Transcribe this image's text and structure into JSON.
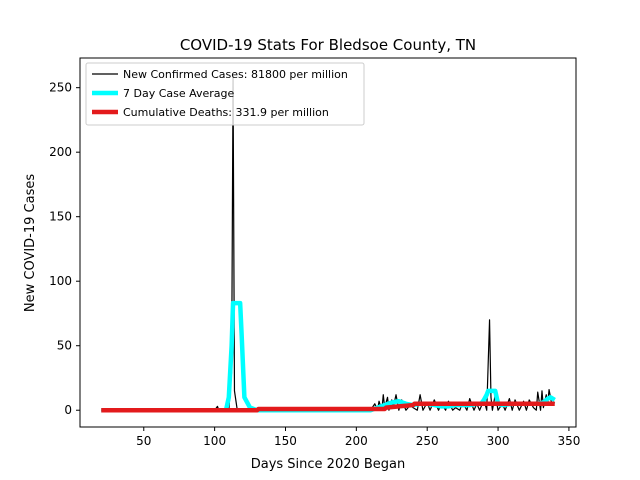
{
  "chart_data": {
    "type": "line",
    "title": "COVID-19 Stats For Bledsoe County, TN",
    "xlabel": "Days Since 2020 Began",
    "ylabel": "New COVID-19 Cases",
    "xlim": [
      5,
      355
    ],
    "ylim": [
      -13,
      273
    ],
    "xticks": [
      50,
      100,
      150,
      200,
      250,
      300,
      350
    ],
    "yticks": [
      0,
      50,
      100,
      150,
      200,
      250
    ],
    "grid": false,
    "legend_placement": "top-left",
    "series": [
      {
        "name": "New Confirmed Cases: 81800 per million",
        "color": "#000000",
        "style": "thin",
        "x": [
          20,
          100,
          102,
          103,
          110,
          112,
          113,
          114,
          116,
          120,
          130,
          140,
          150,
          160,
          170,
          180,
          190,
          200,
          205,
          210,
          213,
          215,
          216,
          218,
          219,
          220,
          222,
          223,
          225,
          226,
          228,
          230,
          232,
          235,
          238,
          240,
          243,
          245,
          247,
          250,
          252,
          255,
          258,
          260,
          263,
          265,
          268,
          270,
          273,
          275,
          278,
          280,
          283,
          285,
          287,
          290,
          292,
          294,
          295,
          296,
          298,
          300,
          303,
          305,
          308,
          310,
          312,
          315,
          318,
          320,
          322,
          325,
          327,
          328,
          330,
          331,
          332,
          334,
          335,
          336,
          338,
          340
        ],
        "y": [
          0,
          0,
          3,
          0,
          0,
          30,
          259,
          15,
          0,
          0,
          0,
          0,
          0,
          0,
          0,
          0,
          0,
          0,
          2,
          0,
          5,
          0,
          7,
          0,
          12,
          2,
          10,
          0,
          8,
          2,
          12,
          0,
          8,
          0,
          4,
          2,
          0,
          12,
          0,
          6,
          0,
          8,
          0,
          5,
          0,
          7,
          0,
          2,
          0,
          6,
          0,
          9,
          0,
          5,
          0,
          8,
          0,
          70,
          10,
          0,
          12,
          0,
          5,
          0,
          9,
          0,
          8,
          0,
          7,
          0,
          8,
          2,
          0,
          14,
          0,
          15,
          2,
          12,
          5,
          16,
          4,
          6
        ]
      },
      {
        "name": "7 Day Case Average",
        "color": "#00ffff",
        "style": "thick",
        "x": [
          20,
          108,
          110,
          112,
          113,
          118,
          119,
          121,
          125,
          130,
          170,
          210,
          215,
          220,
          225,
          230,
          235,
          240,
          245,
          250,
          255,
          260,
          265,
          270,
          275,
          280,
          285,
          288,
          290,
          292,
          293,
          298,
          300,
          303,
          310,
          320,
          328,
          332,
          335,
          337,
          340
        ],
        "y": [
          0,
          0,
          10,
          50,
          83,
          83,
          60,
          10,
          2,
          0,
          0,
          0,
          2,
          4,
          6,
          7,
          5,
          4,
          5,
          5,
          4,
          3,
          3,
          4,
          4,
          4,
          5,
          5,
          8,
          12,
          15,
          15,
          5,
          4,
          5,
          5,
          5,
          6,
          9,
          10,
          8
        ]
      },
      {
        "name": "Cumulative Deaths: 331.9 per million",
        "color": "#e31a1c",
        "style": "thick",
        "x": [
          20,
          130,
          131,
          220,
          221,
          230,
          240,
          241,
          340
        ],
        "y": [
          0,
          0,
          1,
          1,
          2,
          3,
          4,
          5,
          5
        ]
      }
    ]
  }
}
